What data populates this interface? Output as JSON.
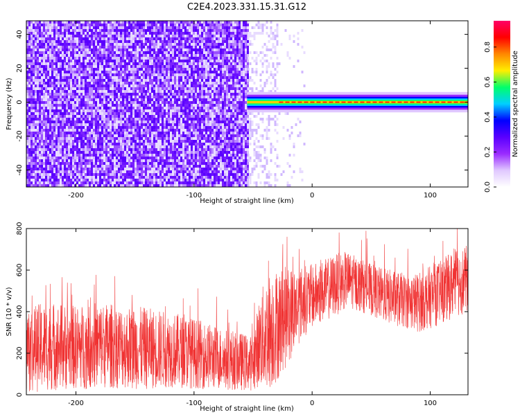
{
  "title": "C2E4.2023.331.15.31.G12",
  "chart_data": [
    {
      "type": "heatmap",
      "xlabel": "Height of straight line (km)",
      "ylabel": "Frequency (Hz)",
      "xlim": [
        -242,
        132
      ],
      "ylim": [
        -50,
        48
      ],
      "xticks": [
        -200,
        -100,
        0,
        100
      ],
      "yticks": [
        -40,
        -20,
        0,
        20,
        40
      ],
      "noise_region_x": [
        -242,
        -55
      ],
      "scattered_region_x": [
        -55,
        -30
      ],
      "signal_band": {
        "x_start": -55,
        "x_end": 132,
        "frequency_center": 0,
        "frequency_halfwidth": 2
      },
      "colorbar": {
        "label": "Normalized spectral amplitude",
        "range": [
          0,
          0.95
        ],
        "ticks": [
          "0.0",
          "0.2",
          "0.4",
          "0.6",
          "0.8"
        ],
        "colors": [
          "#ffffff",
          "#e0c8ff",
          "#9a2bff",
          "#5a00ff",
          "#0000ff",
          "#00cfff",
          "#00ff6a",
          "#ffee00",
          "#ff8800",
          "#ff0000",
          "#ff0066"
        ]
      },
      "grid": false
    },
    {
      "type": "line",
      "xlabel": "Height of straight line (km)",
      "ylabel": "SNR (10 * v/v)",
      "xlim": [
        -242,
        132
      ],
      "ylim": [
        0,
        800
      ],
      "xticks": [
        -200,
        -100,
        0,
        100
      ],
      "yticks": [
        0,
        200,
        400,
        600,
        800
      ],
      "color": "#f03232",
      "series": [
        {
          "x": [
            -240,
            -220,
            -200,
            -180,
            -160,
            -140,
            -120,
            -100,
            -80,
            -60,
            -50,
            -45,
            -40,
            -35,
            -30,
            -20,
            -10,
            0,
            10,
            20,
            30,
            40,
            50,
            60,
            70,
            80,
            90,
            100,
            110,
            120,
            130
          ],
          "lower": [
            10,
            20,
            25,
            30,
            30,
            25,
            35,
            30,
            25,
            20,
            20,
            40,
            10,
            30,
            60,
            150,
            260,
            320,
            350,
            380,
            420,
            400,
            380,
            350,
            330,
            320,
            300,
            320,
            340,
            370,
            390
          ],
          "upper": [
            430,
            450,
            430,
            450,
            430,
            420,
            400,
            370,
            330,
            300,
            280,
            460,
            560,
            600,
            610,
            620,
            620,
            630,
            650,
            680,
            690,
            660,
            630,
            610,
            600,
            580,
            590,
            620,
            650,
            700,
            720
          ]
        }
      ],
      "grid": false
    }
  ]
}
